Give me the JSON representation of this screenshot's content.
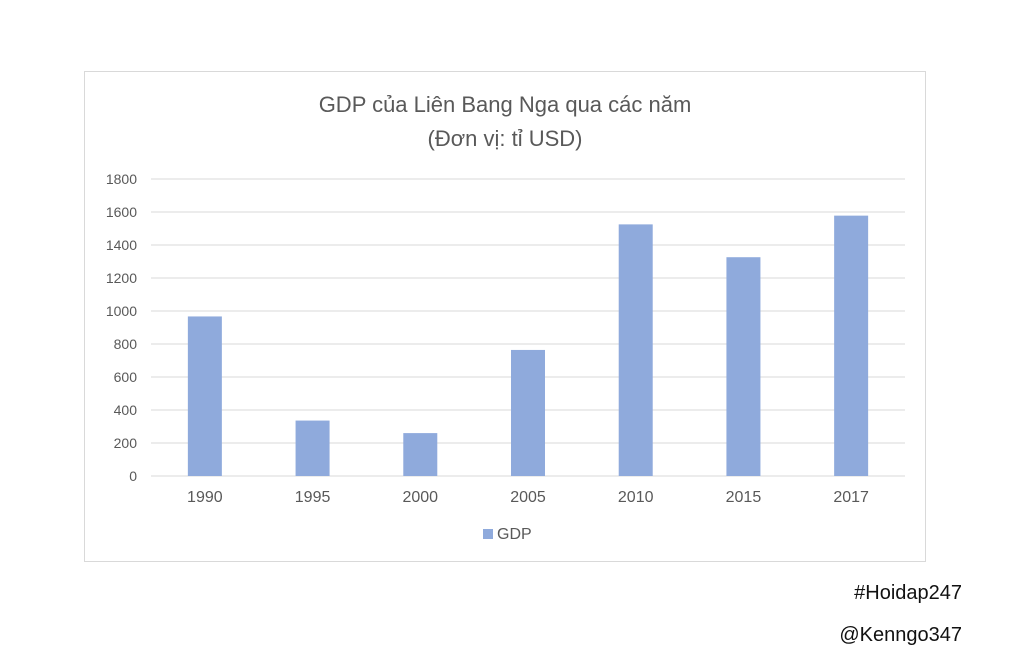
{
  "chart_data": {
    "type": "bar",
    "title": "GDP của Liên Bang Nga qua các năm",
    "subtitle": "(Đơn vị: tỉ USD)",
    "categories": [
      "1990",
      "1995",
      "2000",
      "2005",
      "2010",
      "2015",
      "2017"
    ],
    "series": [
      {
        "name": "GDP",
        "values": [
          967,
          336,
          260,
          764,
          1525,
          1326,
          1578
        ],
        "color": "#8faadc"
      }
    ],
    "yticks": [
      "0",
      "200",
      "400",
      "600",
      "800",
      "1000",
      "1200",
      "1400",
      "1600",
      "1800"
    ],
    "ylim": [
      0,
      1800
    ],
    "grid": true,
    "legend_position": "bottom"
  },
  "watermarks": [
    "#Hoidap247",
    "@Kenngo347"
  ]
}
